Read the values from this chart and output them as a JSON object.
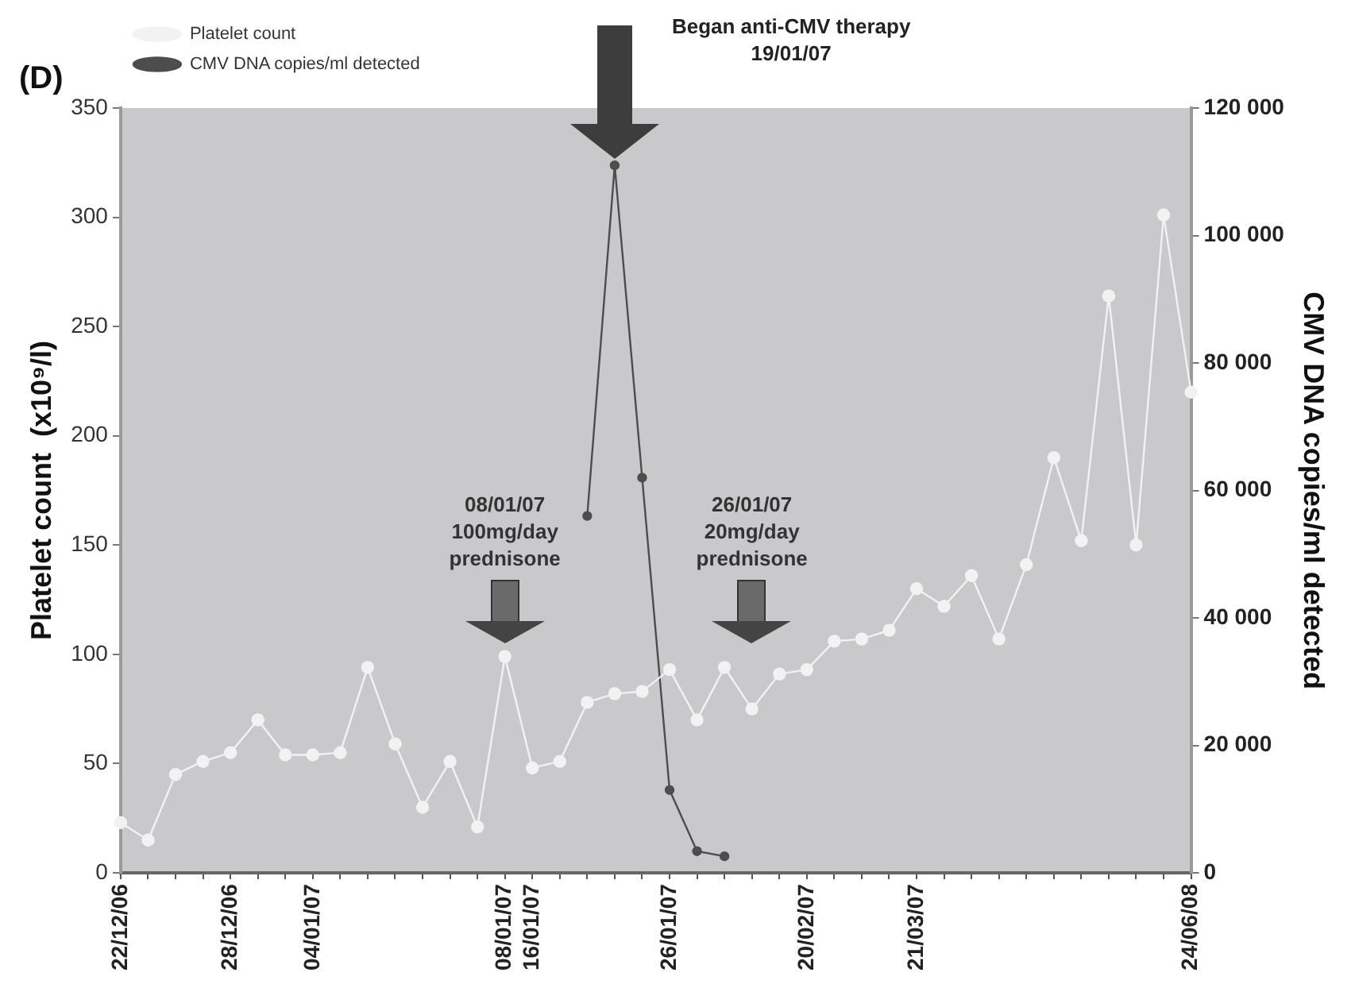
{
  "chart_data": {
    "type": "line",
    "title": "(D)",
    "ylabel": "Platelet count  (x10⁹/l)",
    "y2label": "CMV DNA copies/ml detected",
    "categories": [
      "22/12/06",
      null,
      null,
      null,
      "28/12/06",
      null,
      null,
      "04/01/07",
      null,
      null,
      null,
      null,
      null,
      null,
      "08/01/07",
      "16/01/07",
      null,
      null,
      null,
      null,
      "26/01/07",
      null,
      null,
      null,
      null,
      "20/02/07",
      null,
      null,
      null,
      "21/03/07",
      null,
      null,
      null,
      null,
      null,
      null,
      null,
      null,
      null,
      "24/06/08"
    ],
    "series": [
      {
        "name": "Platelet count",
        "color": "#f2f2f2",
        "values": [
          23,
          15,
          45,
          51,
          55,
          70,
          54,
          54,
          55,
          94,
          59,
          30,
          51,
          21,
          99,
          48,
          51,
          78,
          82,
          83,
          93,
          70,
          94,
          75,
          91,
          93,
          106,
          107,
          111,
          130,
          122,
          136,
          107,
          141,
          190,
          152,
          264,
          150,
          301,
          220
        ]
      },
      {
        "name": "CMV DNA copies/ml detected",
        "color": "#4d4d4d",
        "axis": "y2",
        "values": [
          null,
          null,
          null,
          null,
          null,
          null,
          null,
          null,
          null,
          null,
          null,
          null,
          null,
          null,
          null,
          null,
          null,
          56000,
          111000,
          62000,
          13000,
          3400,
          2600,
          null,
          null,
          null,
          null,
          null,
          null,
          null,
          null,
          null,
          null,
          null,
          null,
          null,
          null,
          null,
          null,
          null
        ]
      }
    ],
    "ylim": [
      0,
      350
    ],
    "yticks": [
      0,
      50,
      100,
      150,
      200,
      250,
      300,
      350
    ],
    "y2lim": [
      0,
      120000
    ],
    "y2ticks": [
      {
        "value": 0,
        "label": "0"
      },
      {
        "value": 20000,
        "label": "20 000"
      },
      {
        "value": 40000,
        "label": "40 000"
      },
      {
        "value": 60000,
        "label": "60 000"
      },
      {
        "value": 80000,
        "label": "80 000"
      },
      {
        "value": 100000,
        "label": "100 000"
      },
      {
        "value": 120000,
        "label": "120 000"
      }
    ],
    "marker": "circle",
    "legend": "top left",
    "annotations": [
      "Began anti-CMV therapy\n19/01/07",
      "08/01/07\n100mg/day\nprednisone",
      "26/01/07\n20mg/day\nprednisone"
    ]
  }
}
